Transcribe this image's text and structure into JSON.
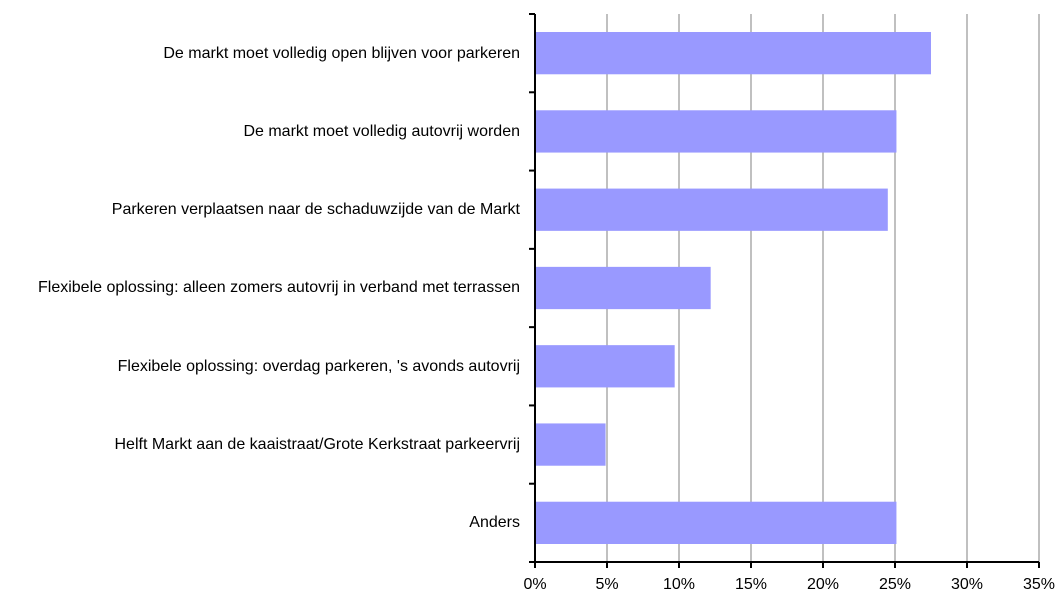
{
  "chart_data": {
    "type": "barh",
    "categories": [
      "De markt moet volledig open blijven voor parkeren",
      "De markt moet volledig autovrij worden",
      "Parkeren verplaatsen naar de schaduwzijde van de Markt",
      "Flexibele oplossing: alleen zomers autovrij in verband met terrassen",
      "Flexibele oplossing: overdag parkeren, 's avonds autovrij",
      "Helft Markt aan de kaaistraat/Grote Kerkstraat parkeervrij",
      "Anders"
    ],
    "values": [
      27.5,
      25.1,
      24.5,
      12.2,
      9.7,
      4.9,
      25.1
    ],
    "color": "#9999ff",
    "xlim": [
      0,
      35
    ],
    "xticks": [
      {
        "value": 0,
        "label": "0%"
      },
      {
        "value": 5,
        "label": "5%"
      },
      {
        "value": 10,
        "label": "10%"
      },
      {
        "value": 15,
        "label": "15%"
      },
      {
        "value": 20,
        "label": "20%"
      },
      {
        "value": 25,
        "label": "25%"
      },
      {
        "value": 30,
        "label": "30%"
      },
      {
        "value": 35,
        "label": "35%"
      }
    ],
    "grid": true
  }
}
